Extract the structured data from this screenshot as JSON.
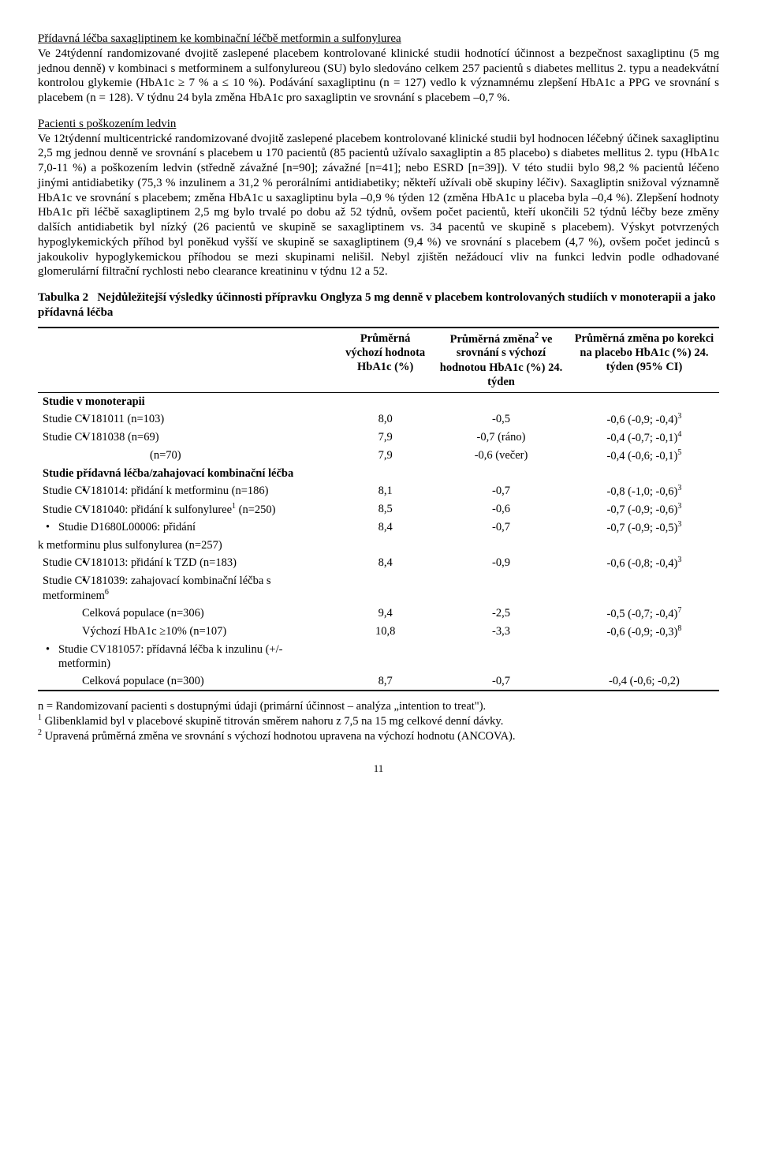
{
  "headings": {
    "h1": "Přídavná léčba saxagliptinem ke kombinační léčbě metformin a sulfonylurea",
    "h2": "Pacienti s poškozením ledvin"
  },
  "paragraphs": {
    "p1": "Ve 24týdenní randomizované dvojitě zaslepené placebem kontrolované klinické studii hodnotící účinnost a bezpečnost saxagliptinu (5 mg jednou denně) v kombinaci s metforminem a sulfonylureou (SU) bylo sledováno celkem 257 pacientů s diabetes mellitus 2. typu a neadekvátní kontrolou glykemie (HbA1c ≥ 7 % a ≤ 10 %). Podávání saxagliptinu (n = 127) vedlo k významnému zlepšení HbA1c a PPG ve srovnání s placebem (n = 128). V týdnu 24 byla změna HbA1c pro saxagliptin ve srovnání s placebem –0,7 %.",
    "p2": "Ve 12týdenní multicentrické randomizované dvojitě zaslepené placebem kontrolované klinické studii byl hodnocen léčebný účinek saxagliptinu 2,5 mg jednou denně ve srovnání s placebem u 170 pacientů (85 pacientů užívalo saxagliptin a 85 placebo) s diabetes mellitus 2. typu (HbA1c 7,0-11 %) a poškozením ledvin (středně závažné [n=90]; závažné [n=41]; nebo ESRD [n=39]). V této studii bylo 98,2 % pacientů léčeno jinými antidiabetiky (75,3 % inzulinem a 31,2 % perorálními antidiabetiky; někteří užívali obě skupiny léčiv). Saxagliptin snižoval významně HbA1c ve srovnání s placebem; změna HbA1c u saxagliptinu byla –0,9 % týden 12 (změna HbA1c u placeba byla –0,4 %). Zlepšení hodnoty HbA1c při léčbě saxagliptinem 2,5 mg bylo trvalé po dobu až 52 týdnů, ovšem počet pacientů, kteří ukončili 52 týdnů léčby beze změny dalších antidiabetik byl nízký (26 pacientů ve skupině se saxagliptinem vs. 34 pacentů ve skupině s placebem). Výskyt potvrzených hypoglykemických příhod byl poněkud vyšší ve skupině se saxagliptinem (9,4 %) ve srovnání s placebem (4,7 %), ovšem počet jedinců s jakoukoliv hypoglykemickou příhodou se mezi skupinami nelišil. Nebyl zjištěn nežádoucí vliv na funkci ledvin podle odhadované glomerulární filtrační rychlosti nebo clearance kreatininu v týdnu 12 a 52."
  },
  "table": {
    "title_prefix": "Tabulka 2",
    "title_rest": "Nejdůležitejší výsledky účinnosti přípravku Onglyza 5 mg denně v placebem kontrolovaných studiích v monoterapii a jako přídavná léčba",
    "header": {
      "c1": "",
      "c2": "Průměrná výchozí hodnota HbA1c (%)",
      "c3_a": "Průměrná změna",
      "c3_b": " ve srovnání s výchozí hodnotou HbA1c (%) 24. týden",
      "c4": "Průměrná změna po korekci na placebo HbA1c (%) 24. týden (95% CI)"
    },
    "section1": "Studie v monoterapii",
    "rows1": [
      {
        "label": "Studie CV181011 (n=103)",
        "b": "8,0",
        "c": "-0,5",
        "d": "-0,6 (-0,9; -0,4)",
        "sup": "3"
      },
      {
        "label": "Studie CV181038 (n=69)",
        "b": "7,9",
        "c": "-0,7 (ráno)",
        "d": "-0,4 (-0,7; -0,1)",
        "sup": "4"
      },
      {
        "label": "                                (n=70)",
        "b": "7,9",
        "c": "-0,6 (večer)",
        "d": "-0,4 (-0,6; -0,1)",
        "sup": "5",
        "nobullet": true
      }
    ],
    "section2": "Studie přídavná léčba/zahajovací kombinační léčba",
    "rows2": [
      {
        "label": "Studie CV181014: přidání k metforminu (n=186)",
        "b": "8,1",
        "c": "-0,7",
        "d": "-0,8 (-1,0; -0,6)",
        "sup": "3"
      },
      {
        "label": "Studie CV181040: přidání k sulfonyluree",
        "sup_label": "1",
        "label2": " (n=250)",
        "b": "8,5",
        "c": "-0,6",
        "d": "-0,7 (-0,9; -0,6)",
        "sup": "3"
      },
      {
        "label": "Studie D1680L00006: přidání k metforminu plus sulfonylurea (n=257)",
        "b": "8,4",
        "c": "-0,7",
        "d": "-0,7 (-0,9; -0,5)",
        "sup": "3",
        "outdent": true
      },
      {
        "label": "Studie CV181013: přidání k TZD (n=183)",
        "b": "8,4",
        "c": "-0,9",
        "d": "-0,6 (-0,8; -0,4)",
        "sup": "3"
      },
      {
        "label": "Studie CV181039: zahajovací kombinační léčba s metforminem",
        "sup_label": "6",
        "noval": true
      }
    ],
    "rows2b": [
      {
        "label": "Celková populace (n=306)",
        "b": "9,4",
        "c": "-2,5",
        "d": "-0,5 (-0,7; -0,4)",
        "sup": "7"
      },
      {
        "label": "Výchozí HbA1c ≥10% (n=107)",
        "b": "10,8",
        "c": "-3,3",
        "d": "-0,6 (-0,9; -0,3)",
        "sup": "8"
      }
    ],
    "row_ins_head": "Studie CV181057: přídavná léčba k inzulinu (+/- metformin)",
    "row_ins": {
      "label": "Celková populace (n=300)",
      "b": "8,7",
      "c": "-0,7",
      "d": "-0,4 (-0,6; -0,2)"
    }
  },
  "footnotes": {
    "f0": "n = Randomizovaní pacienti s dostupnými údaji (primární účinnost – analýza „intention to treat\").",
    "f1_num": "1",
    "f1": " Glibenklamid byl v placebové skupině titrován směrem nahoru z 7,5 na 15 mg celkové denní dávky.",
    "f2_num": "2",
    "f2": " Upravená průměrná změna ve srovnání s výchozí hodnotou upravena na výchozí hodnotu (ANCOVA)."
  },
  "pagenum": "11"
}
